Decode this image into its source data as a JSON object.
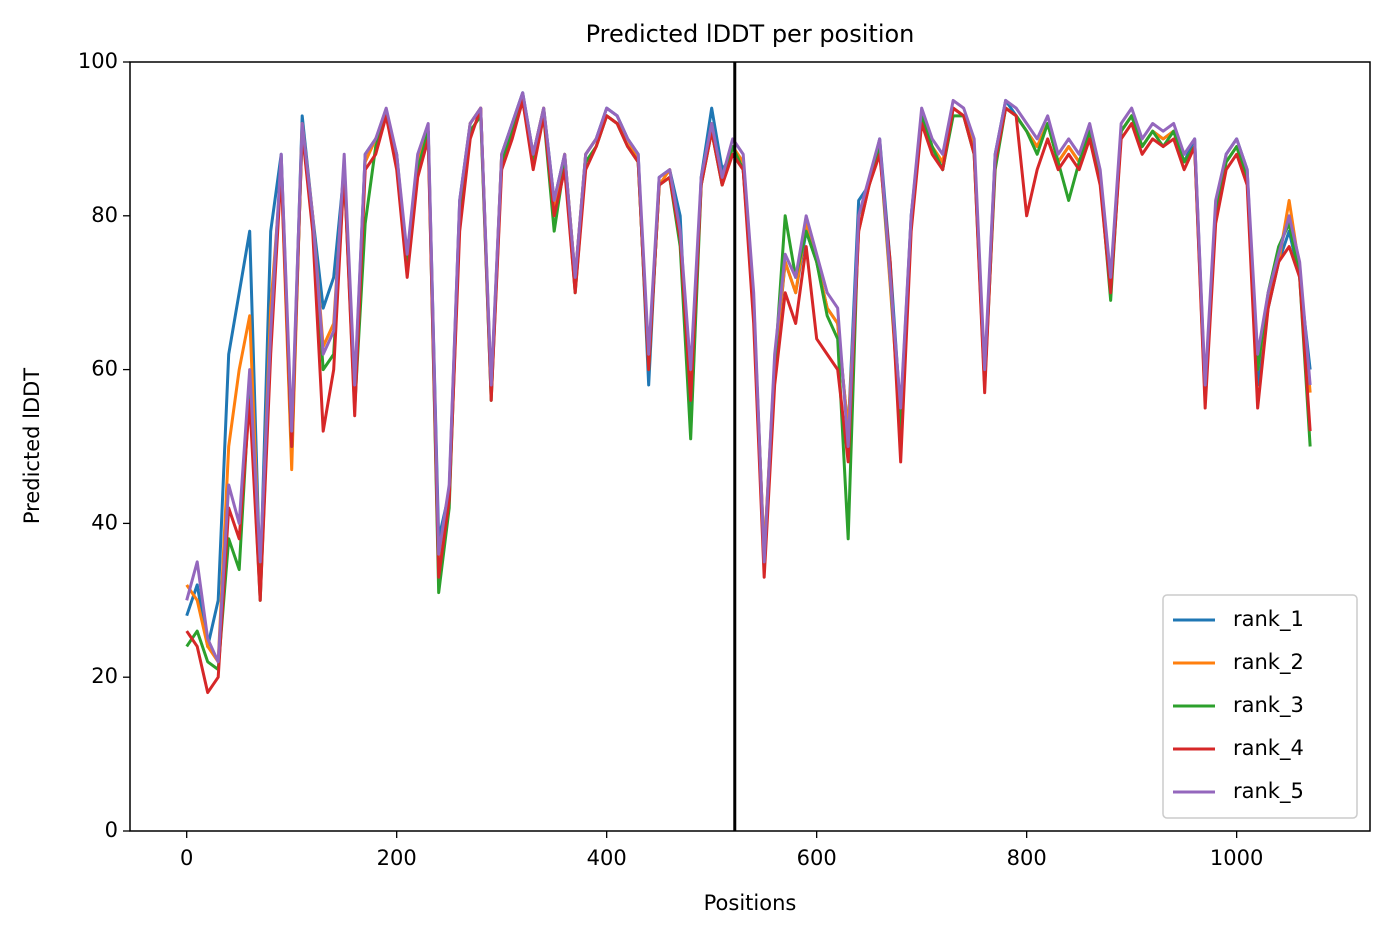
{
  "chart_data": {
    "type": "line",
    "title": "Predicted lDDT per position",
    "xlabel": "Positions",
    "ylabel": "Predicted lDDT",
    "x": [
      0,
      10,
      20,
      30,
      40,
      50,
      60,
      70,
      80,
      90,
      100,
      110,
      120,
      130,
      140,
      150,
      160,
      170,
      180,
      190,
      200,
      210,
      220,
      230,
      240,
      250,
      260,
      270,
      280,
      290,
      300,
      310,
      320,
      330,
      340,
      350,
      360,
      370,
      380,
      390,
      400,
      410,
      420,
      430,
      440,
      450,
      460,
      470,
      480,
      490,
      500,
      510,
      520,
      530,
      540,
      550,
      560,
      570,
      580,
      590,
      600,
      610,
      620,
      630,
      640,
      650,
      660,
      670,
      680,
      690,
      700,
      710,
      720,
      730,
      740,
      750,
      760,
      770,
      780,
      790,
      800,
      810,
      820,
      830,
      840,
      850,
      860,
      870,
      880,
      890,
      900,
      910,
      920,
      930,
      940,
      950,
      960,
      970,
      980,
      990,
      1000,
      1010,
      1020,
      1030,
      1040,
      1050,
      1060,
      1070
    ],
    "series": [
      {
        "name": "rank_1",
        "color": "#1f77b4",
        "values": [
          28,
          32,
          24,
          30,
          62,
          70,
          78,
          32,
          78,
          88,
          50,
          93,
          80,
          68,
          72,
          86,
          57,
          88,
          90,
          93,
          88,
          74,
          87,
          91,
          38,
          44,
          82,
          92,
          94,
          57,
          88,
          92,
          96,
          88,
          94,
          82,
          88,
          72,
          88,
          90,
          94,
          93,
          90,
          88,
          58,
          85,
          86,
          80,
          52,
          85,
          94,
          86,
          88,
          86,
          68,
          36,
          60,
          74,
          70,
          78,
          74,
          68,
          66,
          52,
          82,
          84,
          90,
          74,
          54,
          80,
          93,
          89,
          86,
          94,
          93,
          89,
          58,
          88,
          95,
          93,
          91,
          89,
          92,
          87,
          89,
          87,
          91,
          85,
          70,
          91,
          93,
          89,
          91,
          90,
          91,
          87,
          90,
          57,
          80,
          88,
          90,
          86,
          58,
          68,
          74,
          78,
          72,
          60
        ]
      },
      {
        "name": "rank_2",
        "color": "#ff7f0e",
        "values": [
          32,
          30,
          24,
          22,
          50,
          60,
          67,
          33,
          68,
          86,
          47,
          92,
          80,
          63,
          66,
          87,
          56,
          87,
          90,
          93,
          87,
          74,
          87,
          91,
          35,
          44,
          81,
          92,
          94,
          57,
          88,
          91,
          95,
          88,
          94,
          81,
          88,
          72,
          88,
          90,
          93,
          92,
          90,
          87,
          60,
          84,
          86,
          77,
          58,
          84,
          92,
          84,
          89,
          87,
          68,
          36,
          61,
          74,
          70,
          79,
          74,
          68,
          66,
          52,
          78,
          84,
          89,
          71,
          52,
          79,
          93,
          89,
          87,
          94,
          93,
          89,
          59,
          87,
          94,
          93,
          91,
          89,
          92,
          87,
          89,
          87,
          91,
          85,
          71,
          91,
          93,
          89,
          91,
          90,
          91,
          87,
          89,
          57,
          81,
          87,
          89,
          85,
          60,
          69,
          74,
          82,
          73,
          57
        ]
      },
      {
        "name": "rank_3",
        "color": "#2ca02c",
        "values": [
          24,
          26,
          22,
          21,
          38,
          34,
          58,
          30,
          64,
          87,
          50,
          91,
          79,
          60,
          62,
          86,
          55,
          79,
          89,
          93,
          87,
          73,
          86,
          91,
          31,
          42,
          80,
          91,
          93,
          56,
          87,
          91,
          95,
          87,
          93,
          78,
          87,
          70,
          87,
          89,
          93,
          92,
          89,
          87,
          60,
          84,
          85,
          76,
          51,
          84,
          91,
          84,
          89,
          86,
          69,
          34,
          60,
          80,
          72,
          78,
          74,
          67,
          64,
          38,
          80,
          84,
          89,
          72,
          52,
          79,
          93,
          89,
          86,
          93,
          93,
          88,
          58,
          86,
          94,
          93,
          91,
          88,
          92,
          87,
          82,
          87,
          91,
          85,
          69,
          91,
          93,
          89,
          91,
          89,
          91,
          87,
          89,
          56,
          80,
          87,
          89,
          85,
          60,
          70,
          76,
          79,
          72,
          50
        ]
      },
      {
        "name": "rank_4",
        "color": "#d62728",
        "values": [
          26,
          24,
          18,
          20,
          42,
          38,
          56,
          30,
          62,
          86,
          50,
          91,
          78,
          52,
          60,
          86,
          54,
          86,
          88,
          93,
          86,
          72,
          85,
          90,
          33,
          43,
          78,
          90,
          94,
          56,
          86,
          90,
          95,
          86,
          93,
          80,
          86,
          70,
          86,
          89,
          93,
          92,
          89,
          87,
          60,
          84,
          85,
          77,
          56,
          84,
          91,
          84,
          88,
          86,
          66,
          33,
          58,
          70,
          66,
          76,
          64,
          62,
          60,
          48,
          78,
          84,
          88,
          74,
          48,
          78,
          92,
          88,
          86,
          94,
          93,
          88,
          57,
          87,
          94,
          93,
          80,
          86,
          90,
          86,
          88,
          86,
          90,
          84,
          70,
          90,
          92,
          88,
          90,
          89,
          90,
          86,
          89,
          55,
          79,
          86,
          88,
          84,
          55,
          68,
          74,
          76,
          72,
          52
        ]
      },
      {
        "name": "rank_5",
        "color": "#9467bd",
        "values": [
          30,
          35,
          25,
          22,
          45,
          40,
          60,
          35,
          65,
          88,
          52,
          92,
          80,
          62,
          65,
          88,
          58,
          88,
          90,
          94,
          88,
          75,
          88,
          92,
          36,
          45,
          82,
          92,
          94,
          58,
          88,
          92,
          96,
          88,
          94,
          82,
          88,
          72,
          88,
          90,
          94,
          93,
          90,
          88,
          62,
          85,
          86,
          78,
          60,
          85,
          92,
          85,
          90,
          88,
          70,
          35,
          62,
          75,
          72,
          80,
          75,
          70,
          68,
          50,
          80,
          85,
          90,
          72,
          55,
          80,
          94,
          90,
          88,
          95,
          94,
          90,
          60,
          88,
          95,
          94,
          92,
          90,
          93,
          88,
          90,
          88,
          92,
          86,
          72,
          92,
          94,
          90,
          92,
          91,
          92,
          88,
          90,
          58,
          82,
          88,
          90,
          86,
          62,
          70,
          75,
          80,
          74,
          58
        ]
      }
    ],
    "vlines": [
      522
    ],
    "vline_color": "#000000",
    "xlim": [
      -54,
      1127
    ],
    "ylim": [
      0,
      100
    ],
    "xticks": [
      0,
      200,
      400,
      600,
      800,
      1000
    ],
    "yticks": [
      0,
      20,
      40,
      60,
      80,
      100
    ],
    "legend": "lower right"
  }
}
